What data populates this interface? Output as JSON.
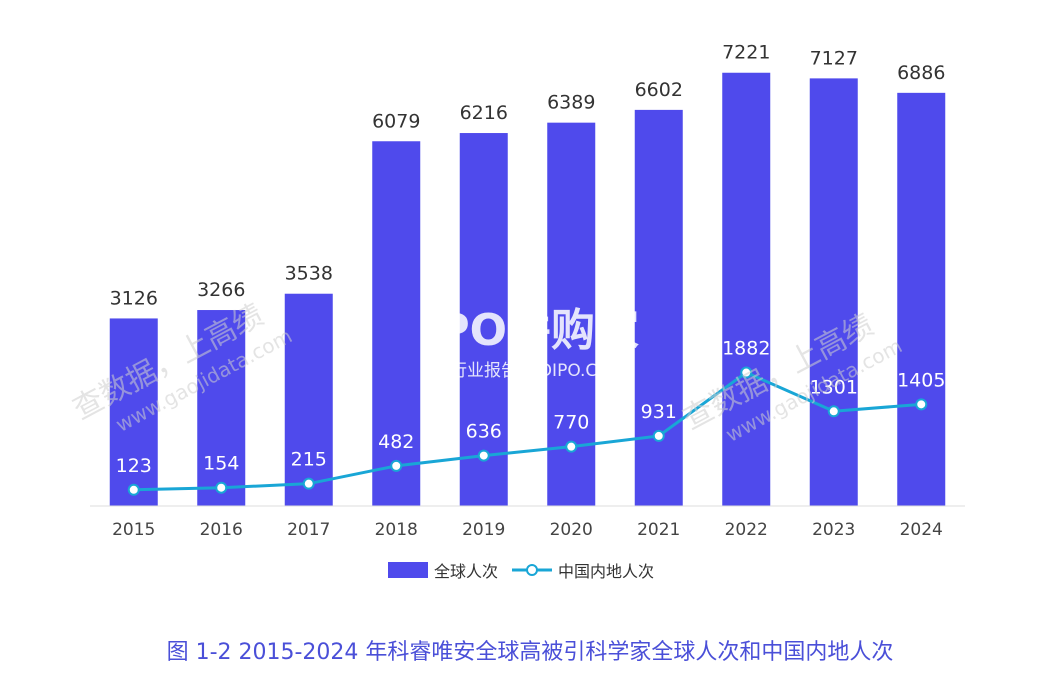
{
  "chart_data": {
    "type": "bar",
    "categories": [
      "2015",
      "2016",
      "2017",
      "2018",
      "2019",
      "2020",
      "2021",
      "2022",
      "2023",
      "2024"
    ],
    "series": [
      {
        "name": "全球人次",
        "type": "bar",
        "color": "#4f4aec",
        "values": [
          3126,
          3266,
          3538,
          6079,
          6216,
          6389,
          6602,
          7221,
          7127,
          6886
        ]
      },
      {
        "name": "中国内地人次",
        "type": "line",
        "color": "#19a6d6",
        "values": [
          123,
          154,
          215,
          482,
          636,
          770,
          931,
          1882,
          1301,
          1405
        ]
      }
    ],
    "ylim": [
      0,
      8000
    ],
    "grid": false,
    "legend": "bottom-center"
  },
  "caption": "图 1-2 2015-2024 年科睿唯安全球高被引科学家全球人次和中国内地人次",
  "watermarks": {
    "left_cn": "查数据，上高绩",
    "left_en": "www.gaojidata.com",
    "right_cn": "查数据，上高绩",
    "right_en": "www.gaojidata.com",
    "logo_main": "IPO并购家",
    "logo_sub": "行业报告 IPOIPO.CN"
  }
}
